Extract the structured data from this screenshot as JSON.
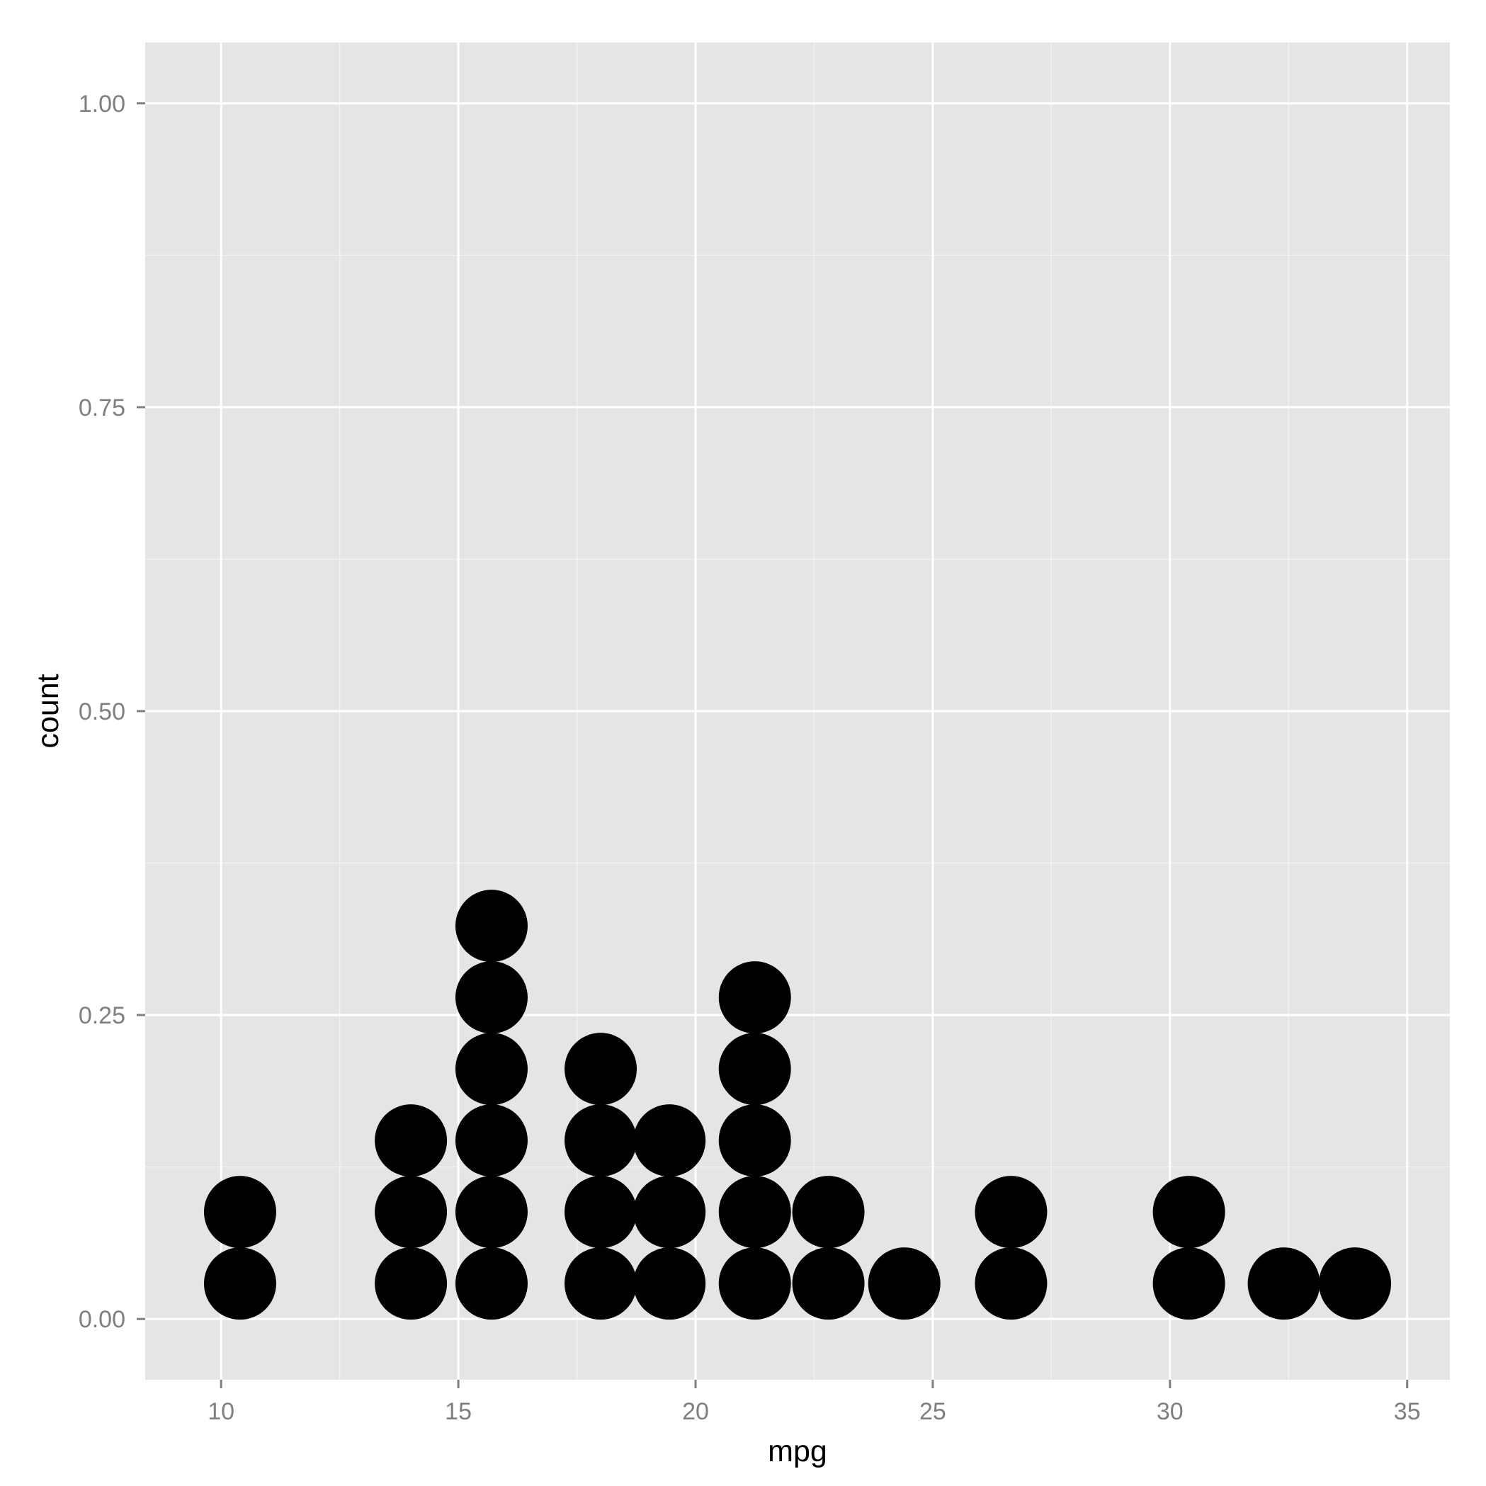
{
  "chart_data": {
    "type": "dotplot",
    "title": "",
    "xlabel": "mpg",
    "ylabel": "count",
    "xlim": [
      8.4,
      35.9
    ],
    "ylim": [
      -0.05,
      1.05
    ],
    "x_ticks": [
      10,
      15,
      20,
      25,
      30,
      35
    ],
    "x_tick_labels": [
      "10",
      "15",
      "20",
      "25",
      "30",
      "35"
    ],
    "y_ticks": [
      0,
      0.25,
      0.5,
      0.75,
      1
    ],
    "y_tick_labels": [
      "0.00",
      "0.25",
      "0.50",
      "0.75",
      "1.00"
    ],
    "grid": true,
    "stacks": [
      {
        "x": 10.4,
        "count": 2
      },
      {
        "x": 14.0,
        "count": 3
      },
      {
        "x": 15.7,
        "count": 6
      },
      {
        "x": 18.0,
        "count": 4
      },
      {
        "x": 19.45,
        "count": 3
      },
      {
        "x": 21.25,
        "count": 5
      },
      {
        "x": 22.8,
        "count": 2
      },
      {
        "x": 24.4,
        "count": 1
      },
      {
        "x": 26.65,
        "count": 2
      },
      {
        "x": 30.4,
        "count": 2
      },
      {
        "x": 32.4,
        "count": 1
      },
      {
        "x": 33.9,
        "count": 1
      }
    ],
    "colors": {
      "panel_background": "#e5e5e5",
      "grid_major": "#ffffff",
      "grid_minor": "#f2f2f2",
      "dot_fill": "#000000",
      "tick_label": "#7f7f7f",
      "tick_mark": "#7f7f7f"
    }
  }
}
